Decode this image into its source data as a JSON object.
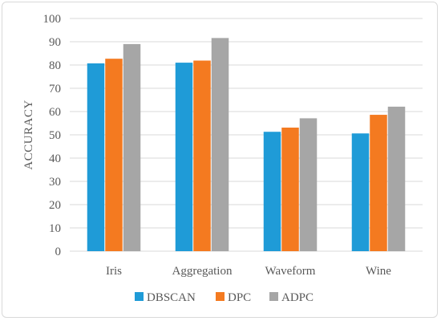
{
  "chart_data": {
    "type": "bar",
    "categories": [
      "Iris",
      "Aggregation",
      "Waveform",
      "Wine"
    ],
    "series": [
      {
        "name": "DBSCAN",
        "color": "#1f9bd7",
        "values": [
          80.7,
          81.0,
          51.3,
          50.6
        ]
      },
      {
        "name": "DPC",
        "color": "#f47a20",
        "values": [
          82.7,
          81.9,
          53.1,
          58.6
        ]
      },
      {
        "name": "ADPC",
        "color": "#a6a6a6",
        "values": [
          89.0,
          91.6,
          57.1,
          62.1
        ]
      }
    ],
    "title": "",
    "xlabel": "",
    "ylabel": "ACCURACY",
    "ylim": [
      0,
      100
    ],
    "yticks": [
      0,
      10,
      20,
      30,
      40,
      50,
      60,
      70,
      80,
      90,
      100
    ],
    "grid": true,
    "legend": "bottom"
  }
}
